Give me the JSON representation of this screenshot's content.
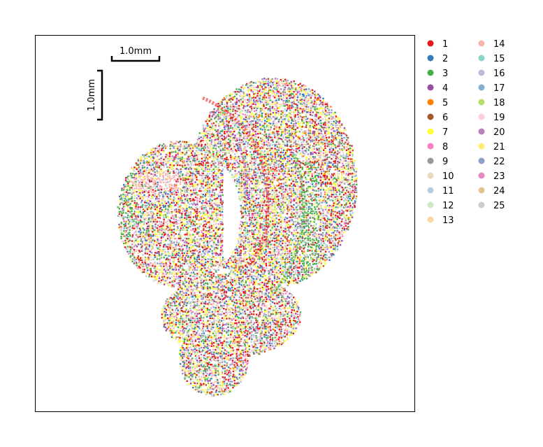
{
  "chart_data": {
    "type": "scatter",
    "title": "",
    "xlabel": "",
    "ylabel": "",
    "grid": false,
    "legend_placement": "right-outside, two columns",
    "scalebar_x_label": "1.0mm",
    "scalebar_y_label": "1.0mm",
    "series": [
      {
        "name": "1",
        "color": "#e41a1c"
      },
      {
        "name": "2",
        "color": "#377eb8"
      },
      {
        "name": "3",
        "color": "#4daf4a"
      },
      {
        "name": "4",
        "color": "#984ea3"
      },
      {
        "name": "5",
        "color": "#ff7f00"
      },
      {
        "name": "6",
        "color": "#a65628"
      },
      {
        "name": "7",
        "color": "#ffff33"
      },
      {
        "name": "8",
        "color": "#f781bf"
      },
      {
        "name": "9",
        "color": "#999999"
      },
      {
        "name": "10",
        "color": "#e5d8bd"
      },
      {
        "name": "11",
        "color": "#b3cde3"
      },
      {
        "name": "12",
        "color": "#ccebc5"
      },
      {
        "name": "13",
        "color": "#fed9a6"
      },
      {
        "name": "14",
        "color": "#fbb4ae"
      },
      {
        "name": "15",
        "color": "#8dd3c7"
      },
      {
        "name": "16",
        "color": "#bebada"
      },
      {
        "name": "17",
        "color": "#80b1d3"
      },
      {
        "name": "18",
        "color": "#b3de69"
      },
      {
        "name": "19",
        "color": "#fccde5"
      },
      {
        "name": "20",
        "color": "#bc80bd"
      },
      {
        "name": "21",
        "color": "#ffed6f"
      },
      {
        "name": "22",
        "color": "#8da0cb"
      },
      {
        "name": "23",
        "color": "#e78ac3"
      },
      {
        "name": "24",
        "color": "#e5c494"
      },
      {
        "name": "25",
        "color": "#cccccc"
      }
    ]
  }
}
